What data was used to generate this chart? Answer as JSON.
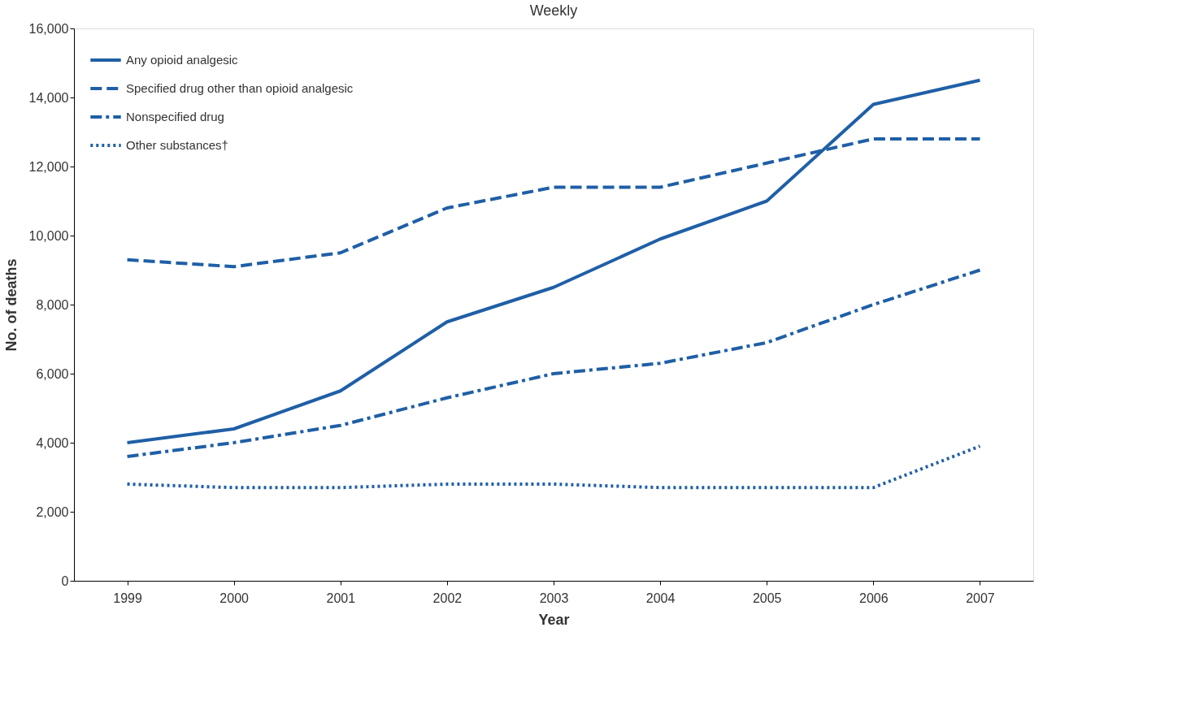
{
  "chart_data": {
    "type": "line",
    "title": "Weekly",
    "xlabel": "Year",
    "ylabel": "No. of deaths",
    "x": [
      1999,
      2000,
      2001,
      2002,
      2003,
      2004,
      2005,
      2006,
      2007
    ],
    "xlim": [
      1998.5,
      2007.5
    ],
    "xticks": [
      1999,
      2000,
      2001,
      2002,
      2003,
      2004,
      2005,
      2006,
      2007
    ],
    "ylim": [
      0,
      16000
    ],
    "yticks": [
      0,
      {
        "value": 2000,
        "label": "2,000"
      },
      {
        "value": 4000,
        "label": "4,000"
      },
      {
        "value": 6000,
        "label": "6,000"
      },
      {
        "value": 8000,
        "label": "8,000"
      },
      {
        "value": 10000,
        "label": "10,000"
      },
      {
        "value": 12000,
        "label": "12,000"
      },
      {
        "value": 14000,
        "label": "14,000"
      },
      {
        "value": 16000,
        "label": "16,000"
      }
    ],
    "grid": false,
    "legend": "top left",
    "marker": "none",
    "series": [
      {
        "name": "Any opioid analgesic",
        "color": "#1f5fa6",
        "line_style": "solid",
        "values": [
          4000,
          4400,
          5500,
          7500,
          8500,
          9900,
          11000,
          13800,
          14500
        ]
      },
      {
        "name": "Specified drug other than opioid analgesic",
        "color": "#1f5fa6",
        "line_style": "dashed",
        "values": [
          9300,
          9100,
          9500,
          10800,
          11400,
          11400,
          12100,
          12800,
          12800
        ]
      },
      {
        "name": "Nonspecified drug",
        "color": "#1f5fa6",
        "line_style": "dashdot",
        "values": [
          3600,
          4000,
          4500,
          5300,
          6000,
          6300,
          6900,
          8000,
          9000
        ]
      },
      {
        "name": "Other substances†",
        "color": "#1f5fa6",
        "line_style": "dotted",
        "values": [
          2800,
          2700,
          2700,
          2800,
          2800,
          2700,
          2700,
          2700,
          3900
        ]
      }
    ]
  }
}
